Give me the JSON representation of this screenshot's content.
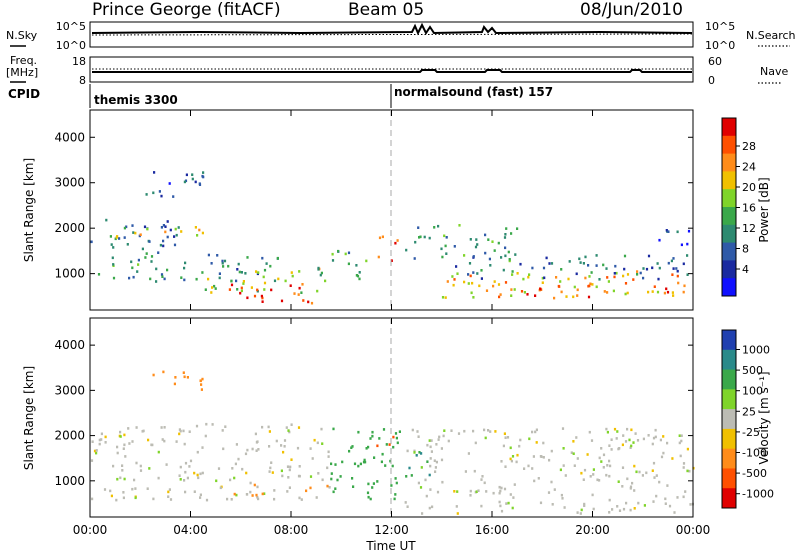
{
  "header": {
    "station": "Prince George (fitACF)",
    "beam": "Beam 05",
    "date": "08/Jun/2010"
  },
  "sky_panel": {
    "left_label": "N.Sky",
    "right_label": "N.Search",
    "left_ticks": [
      "10^5",
      "10^0"
    ],
    "right_ticks": [
      "10^5",
      "10^0"
    ]
  },
  "freq_panel": {
    "left_label_1": "Freq.",
    "left_label_2": "[MHz]",
    "right_label": "Nave",
    "left_ticks": [
      "18",
      "8"
    ],
    "right_ticks": [
      "60",
      "0"
    ]
  },
  "cpid_panel": {
    "label": "CPID",
    "modes": [
      {
        "text": "themis 3300",
        "start_hour": 0
      },
      {
        "text": "normalsound (fast) 157",
        "start_hour": 12
      }
    ]
  },
  "axes": {
    "xlabel": "Time UT",
    "x_tick_labels": [
      "00:00",
      "04:00",
      "08:00",
      "12:00",
      "16:00",
      "20:00",
      "00:00"
    ],
    "x_tick_hours": [
      0,
      4,
      8,
      12,
      16,
      20,
      24
    ],
    "ylabel": "Slant Range [km]",
    "y_ticks": [
      1000,
      2000,
      3000,
      4000
    ],
    "ylim": [
      200,
      4600
    ]
  },
  "power_colorbar": {
    "label": "Power [dB]",
    "tick_labels": [
      "28",
      "24",
      "20",
      "16",
      "12",
      "8",
      "4"
    ],
    "colors": [
      "#e00000",
      "#ff5000",
      "#ff8c1a",
      "#f0c000",
      "#7fd42a",
      "#3aa84a",
      "#2d8a70",
      "#2f5aa8",
      "#1a2aa0",
      "#1010ff"
    ]
  },
  "velocity_colorbar": {
    "label": "Velocity [m s⁻¹]",
    "tick_labels": [
      "1000",
      "500",
      "100",
      "25",
      "-25",
      "-100",
      "-500",
      "-1000"
    ],
    "colors": [
      "#2040b0",
      "#2a8a8a",
      "#3aa84a",
      "#7fd42a",
      "#bcbcb4",
      "#f0c000",
      "#ff8c1a",
      "#ff5000",
      "#e00000"
    ]
  },
  "chart_data": {
    "type": "heatmap",
    "title": "Prince George (fitACF)  Beam 05  08/Jun/2010",
    "xlabel": "Time UT",
    "ylabel": "Slant Range [km]",
    "xlim_hours": [
      0,
      24
    ],
    "ylim": [
      200,
      4600
    ],
    "panels": [
      {
        "name": "Power [dB]",
        "regions": [
          {
            "t0": 0.0,
            "t1": 3.5,
            "r0": 1500,
            "r1": 2300,
            "value": 10
          },
          {
            "t0": 1.0,
            "t1": 5.0,
            "r0": 1750,
            "r1": 2050,
            "value": 20
          },
          {
            "t0": 0.0,
            "t1": 7.5,
            "r0": 850,
            "r1": 1500,
            "value": 12
          },
          {
            "t0": 2.2,
            "t1": 4.5,
            "r0": 2700,
            "r1": 3400,
            "value": 8
          },
          {
            "t0": 4.5,
            "t1": 9.5,
            "r0": 600,
            "r1": 1150,
            "value": 18
          },
          {
            "t0": 5.5,
            "t1": 9.0,
            "r0": 300,
            "r1": 800,
            "value": 30
          },
          {
            "t0": 9.0,
            "t1": 11.0,
            "r0": 900,
            "r1": 1600,
            "value": 14
          },
          {
            "t0": 11.3,
            "t1": 12.2,
            "r0": 1300,
            "r1": 1900,
            "value": 26
          },
          {
            "t0": 12.5,
            "t1": 17.0,
            "r0": 1300,
            "r1": 2100,
            "value": 12
          },
          {
            "t0": 14.0,
            "t1": 24.0,
            "r0": 500,
            "r1": 1100,
            "value": 22
          },
          {
            "t0": 14.5,
            "t1": 24.0,
            "r0": 900,
            "r1": 1450,
            "value": 10
          },
          {
            "t0": 17.0,
            "t1": 20.0,
            "r0": 400,
            "r1": 800,
            "value": 28
          },
          {
            "t0": 22.0,
            "t1": 24.0,
            "r0": 500,
            "r1": 800,
            "value": 24
          },
          {
            "t0": 22.5,
            "t1": 24.0,
            "r0": 1500,
            "r1": 2000,
            "value": 8
          }
        ]
      },
      {
        "name": "Velocity [m s-1]",
        "regions": [
          {
            "t0": 0.0,
            "t1": 9.5,
            "r0": 600,
            "r1": 2300,
            "value": 0
          },
          {
            "t0": 2.2,
            "t1": 4.5,
            "r0": 3000,
            "r1": 3450,
            "value": -150
          },
          {
            "t0": 5.5,
            "t1": 7.0,
            "r0": 700,
            "r1": 1000,
            "value": -150
          },
          {
            "t0": 8.0,
            "t1": 9.5,
            "r0": 800,
            "r1": 1000,
            "value": -300
          },
          {
            "t0": 9.5,
            "t1": 12.5,
            "r0": 600,
            "r1": 2200,
            "value": 200
          },
          {
            "t0": 11.3,
            "t1": 12.2,
            "r0": 1700,
            "r1": 2000,
            "value": -500
          },
          {
            "t0": 12.5,
            "t1": 13.5,
            "r0": 1000,
            "r1": 1700,
            "value": 500
          },
          {
            "t0": 12.5,
            "t1": 24.0,
            "r0": 300,
            "r1": 2200,
            "value": 0
          }
        ]
      }
    ]
  }
}
